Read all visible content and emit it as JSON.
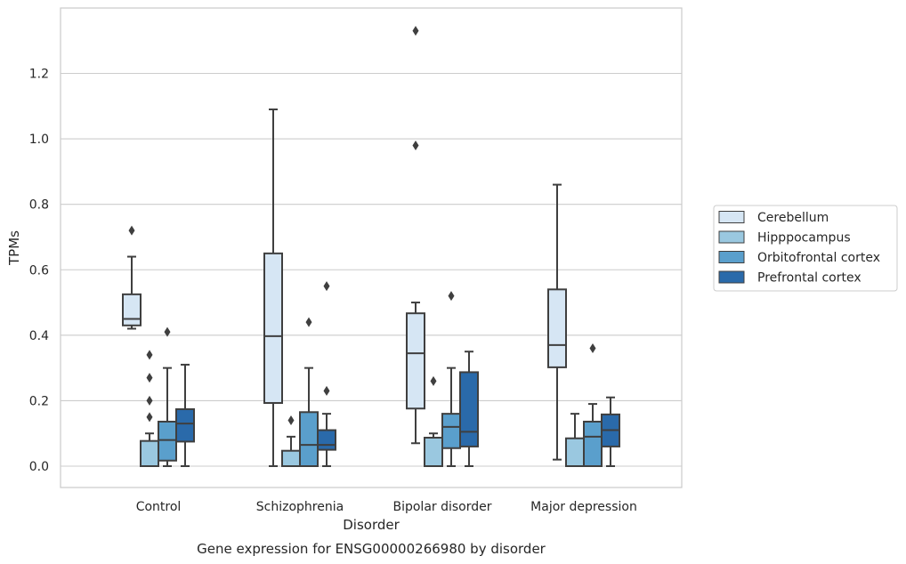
{
  "chart_data": {
    "type": "box",
    "xlabel": "Disorder",
    "ylabel": "TPMs",
    "caption": "Gene expression for ENSG00000266980 by disorder",
    "ylim": [
      -0.065,
      1.4
    ],
    "yticks": [
      0.0,
      0.2,
      0.4,
      0.6,
      0.8,
      1.0,
      1.2
    ],
    "ytick_labels": [
      "0.0",
      "0.2",
      "0.4",
      "0.6",
      "0.8",
      "1.0",
      "1.2"
    ],
    "grid": "horizontal",
    "legend_position": "right",
    "categories": [
      "Control",
      "Schizophrenia",
      "Bipolar disorder",
      "Major depression"
    ],
    "series": [
      {
        "name": "Cerebellum",
        "color": "#d6e6f4",
        "boxes": [
          {
            "category": "Control",
            "whislo": 0.42,
            "q1": 0.43,
            "med": 0.45,
            "q3": 0.525,
            "whishi": 0.64,
            "fliers": [
              0.72
            ]
          },
          {
            "category": "Schizophrenia",
            "whislo": 0.0,
            "q1": 0.193,
            "med": 0.397,
            "q3": 0.65,
            "whishi": 1.09,
            "fliers": []
          },
          {
            "category": "Bipolar disorder",
            "whislo": 0.07,
            "q1": 0.176,
            "med": 0.345,
            "q3": 0.467,
            "whishi": 0.5,
            "fliers": [
              0.98,
              1.33
            ]
          },
          {
            "category": "Major depression",
            "whislo": 0.02,
            "q1": 0.302,
            "med": 0.37,
            "q3": 0.54,
            "whishi": 0.86,
            "fliers": []
          }
        ]
      },
      {
        "name": "Hipppocampus",
        "color": "#9ac8e0",
        "boxes": [
          {
            "category": "Control",
            "whislo": 0.0,
            "q1": 0.0,
            "med": 0.0,
            "q3": 0.077,
            "whishi": 0.1,
            "fliers": [
              0.15,
              0.2,
              0.27,
              0.34
            ]
          },
          {
            "category": "Schizophrenia",
            "whislo": 0.0,
            "q1": 0.0,
            "med": 0.0,
            "q3": 0.047,
            "whishi": 0.09,
            "fliers": [
              0.14
            ]
          },
          {
            "category": "Bipolar disorder",
            "whislo": 0.0,
            "q1": 0.0,
            "med": 0.0,
            "q3": 0.087,
            "whishi": 0.1,
            "fliers": [
              0.26
            ]
          },
          {
            "category": "Major depression",
            "whislo": 0.0,
            "q1": 0.0,
            "med": 0.0,
            "q3": 0.085,
            "whishi": 0.16,
            "fliers": []
          }
        ]
      },
      {
        "name": "Orbitofrontal cortex",
        "color": "#5a9fcc",
        "boxes": [
          {
            "category": "Control",
            "whislo": 0.0,
            "q1": 0.017,
            "med": 0.08,
            "q3": 0.136,
            "whishi": 0.3,
            "fliers": [
              0.41
            ]
          },
          {
            "category": "Schizophrenia",
            "whislo": 0.0,
            "q1": 0.0,
            "med": 0.065,
            "q3": 0.165,
            "whishi": 0.3,
            "fliers": [
              0.44
            ]
          },
          {
            "category": "Bipolar disorder",
            "whislo": 0.0,
            "q1": 0.055,
            "med": 0.12,
            "q3": 0.16,
            "whishi": 0.3,
            "fliers": [
              0.52
            ]
          },
          {
            "category": "Major depression",
            "whislo": 0.0,
            "q1": 0.0,
            "med": 0.09,
            "q3": 0.136,
            "whishi": 0.19,
            "fliers": [
              0.36
            ]
          }
        ]
      },
      {
        "name": "Prefrontal cortex",
        "color": "#2a6aaa",
        "boxes": [
          {
            "category": "Control",
            "whislo": 0.0,
            "q1": 0.075,
            "med": 0.13,
            "q3": 0.174,
            "whishi": 0.31,
            "fliers": []
          },
          {
            "category": "Schizophrenia",
            "whislo": 0.0,
            "q1": 0.05,
            "med": 0.065,
            "q3": 0.11,
            "whishi": 0.16,
            "fliers": [
              0.23,
              0.55
            ]
          },
          {
            "category": "Bipolar disorder",
            "whislo": 0.0,
            "q1": 0.06,
            "med": 0.105,
            "q3": 0.287,
            "whishi": 0.35,
            "fliers": []
          },
          {
            "category": "Major depression",
            "whislo": 0.0,
            "q1": 0.06,
            "med": 0.11,
            "q3": 0.158,
            "whishi": 0.21,
            "fliers": []
          }
        ]
      }
    ]
  }
}
